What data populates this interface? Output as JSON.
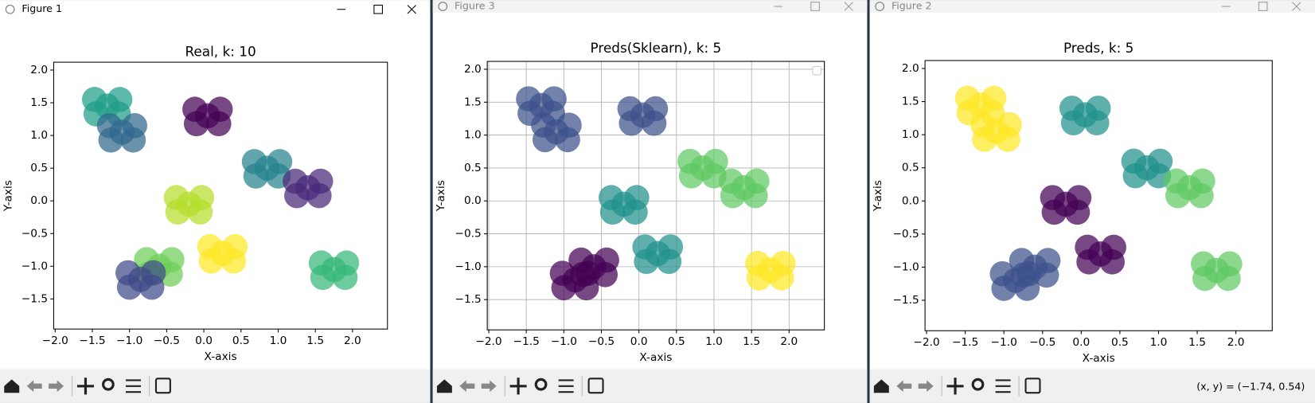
{
  "windows": [
    {
      "title": "Figure 1",
      "chart": {
        "type": "scatter",
        "title": "Real, k: 10",
        "xlabel": "X-axis",
        "ylabel": "Y-axis",
        "grid": false,
        "xlim": [
          -2.02,
          2.47
        ],
        "ylim": [
          -1.96,
          2.12
        ],
        "xticks": [
          {
            "value": -2,
            "label": "−2.0"
          },
          {
            "value": -1.5,
            "label": "−1.5"
          },
          {
            "value": -1,
            "label": "−1.0"
          },
          {
            "value": -0.5,
            "label": "−0.5"
          },
          {
            "value": 0,
            "label": "0.0"
          },
          {
            "value": 0.5,
            "label": "0.5"
          },
          {
            "value": 1,
            "label": "1.0"
          },
          {
            "value": 1.5,
            "label": "1.5"
          },
          {
            "value": 2,
            "label": "2.0"
          }
        ],
        "yticks": [
          {
            "value": -1.5,
            "label": "−1.5"
          },
          {
            "value": -1,
            "label": "−1.0"
          },
          {
            "value": -0.5,
            "label": "−0.5"
          },
          {
            "value": 0,
            "label": "0.0"
          },
          {
            "value": 0.5,
            "label": "0.5"
          },
          {
            "value": 1,
            "label": "1.0"
          },
          {
            "value": 1.5,
            "label": "1.5"
          },
          {
            "value": 2,
            "label": "2.0"
          }
        ],
        "series": [
          {
            "color": "#6ece58",
            "x": [
              -0.6,
              -0.43,
              -0.77,
              -0.45,
              -0.75
            ],
            "y": [
              -1.0,
              -0.9,
              -0.9,
              -1.12,
              -1.12
            ]
          },
          {
            "color": "#3e4989",
            "x": [
              -0.85,
              -0.68,
              -1.02,
              -0.7,
              -1.0
            ],
            "y": [
              -1.2,
              -1.1,
              -1.1,
              -1.32,
              -1.32
            ]
          },
          {
            "color": "#1f9e89",
            "x": [
              -1.3,
              -1.13,
              -1.47,
              -1.15,
              -1.45
            ],
            "y": [
              1.45,
              1.55,
              1.55,
              1.33,
              1.33
            ]
          },
          {
            "color": "#31688e",
            "x": [
              -1.1,
              -0.93,
              -1.27,
              -0.95,
              -1.25
            ],
            "y": [
              1.05,
              1.15,
              1.15,
              0.93,
              0.93
            ]
          },
          {
            "color": "#440154",
            "x": [
              0.05,
              0.22,
              -0.12,
              0.2,
              -0.1
            ],
            "y": [
              1.3,
              1.4,
              1.4,
              1.18,
              1.18
            ]
          },
          {
            "color": "#26828e",
            "x": [
              0.85,
              1.02,
              0.68,
              1.0,
              0.7
            ],
            "y": [
              0.5,
              0.6,
              0.6,
              0.38,
              0.38
            ]
          },
          {
            "color": "#482878",
            "x": [
              1.4,
              1.57,
              1.23,
              1.55,
              1.25
            ],
            "y": [
              0.2,
              0.3,
              0.3,
              0.08,
              0.08
            ]
          },
          {
            "color": "#b5de2b",
            "x": [
              -0.2,
              -0.03,
              -0.37,
              -0.05,
              -0.35
            ],
            "y": [
              -0.05,
              0.05,
              0.05,
              -0.17,
              -0.17
            ]
          },
          {
            "color": "#fde725",
            "x": [
              0.25,
              0.42,
              0.08,
              0.4,
              0.1
            ],
            "y": [
              -0.8,
              -0.7,
              -0.7,
              -0.92,
              -0.92
            ]
          },
          {
            "color": "#35b779",
            "x": [
              1.75,
              1.92,
              1.58,
              1.9,
              1.6
            ],
            "y": [
              -1.05,
              -0.95,
              -0.95,
              -1.17,
              -1.17
            ]
          }
        ]
      }
    },
    {
      "title": "Figure 3",
      "chart": {
        "type": "scatter",
        "title": "Preds(Sklearn), k: 5",
        "xlabel": "X-axis",
        "ylabel": "Y-axis",
        "grid": true,
        "xlim": [
          -2.02,
          2.47
        ],
        "ylim": [
          -1.96,
          2.12
        ],
        "xticks": [
          {
            "value": -2,
            "label": "−2.0"
          },
          {
            "value": -1.5,
            "label": "−1.5"
          },
          {
            "value": -1,
            "label": "−1.0"
          },
          {
            "value": -0.5,
            "label": "−0.5"
          },
          {
            "value": 0,
            "label": "0.0"
          },
          {
            "value": 0.5,
            "label": "0.5"
          },
          {
            "value": 1,
            "label": "1.0"
          },
          {
            "value": 1.5,
            "label": "1.5"
          },
          {
            "value": 2,
            "label": "2.0"
          }
        ],
        "yticks": [
          {
            "value": -1.5,
            "label": "−1.5"
          },
          {
            "value": -1,
            "label": "−1.0"
          },
          {
            "value": -0.5,
            "label": "−0.5"
          },
          {
            "value": 0,
            "label": "0.0"
          },
          {
            "value": 0.5,
            "label": "0.5"
          },
          {
            "value": 1,
            "label": "1.0"
          },
          {
            "value": 1.5,
            "label": "1.5"
          },
          {
            "value": 2,
            "label": "2.0"
          }
        ],
        "series": [
          {
            "color": "#3b528b",
            "x": [
              -1.3,
              -1.13,
              -1.47,
              -1.15,
              -1.45,
              -1.1,
              -0.93,
              -1.27,
              -0.95,
              -1.25,
              0.05,
              0.22,
              -0.12,
              0.2,
              -0.1
            ],
            "y": [
              1.45,
              1.55,
              1.55,
              1.33,
              1.33,
              1.05,
              1.15,
              1.15,
              0.93,
              0.93,
              1.3,
              1.4,
              1.4,
              1.18,
              1.18
            ]
          },
          {
            "color": "#21918c",
            "x": [
              -0.2,
              -0.03,
              -0.37,
              -0.05,
              -0.35,
              0.25,
              0.42,
              0.08,
              0.4,
              0.1
            ],
            "y": [
              -0.05,
              0.05,
              0.05,
              -0.17,
              -0.17,
              -0.8,
              -0.7,
              -0.7,
              -0.92,
              -0.92
            ]
          },
          {
            "color": "#5ec962",
            "x": [
              0.85,
              1.02,
              0.68,
              1.0,
              0.7,
              1.4,
              1.57,
              1.23,
              1.55,
              1.25
            ],
            "y": [
              0.5,
              0.6,
              0.6,
              0.38,
              0.38,
              0.2,
              0.3,
              0.3,
              0.08,
              0.08
            ]
          },
          {
            "color": "#440154",
            "x": [
              -0.85,
              -0.68,
              -1.02,
              -0.7,
              -1.0,
              -0.6,
              -0.43,
              -0.77,
              -0.45,
              -0.75
            ],
            "y": [
              -1.2,
              -1.1,
              -1.1,
              -1.32,
              -1.32,
              -1.0,
              -0.9,
              -0.9,
              -1.12,
              -1.12
            ]
          },
          {
            "color": "#fde725",
            "x": [
              1.75,
              1.92,
              1.58,
              1.9,
              1.6
            ],
            "y": [
              -1.05,
              -0.95,
              -0.95,
              -1.17,
              -1.17
            ]
          }
        ]
      }
    },
    {
      "title": "Figure 2",
      "status": "(x, y) = (−1.74, 0.54)",
      "chart": {
        "type": "scatter",
        "title": "Preds, k: 5",
        "xlabel": "X-axis",
        "ylabel": "Y-axis",
        "grid": false,
        "xlim": [
          -2.02,
          2.47
        ],
        "ylim": [
          -1.96,
          2.12
        ],
        "xticks": [
          {
            "value": -2,
            "label": "−2.0"
          },
          {
            "value": -1.5,
            "label": "−1.5"
          },
          {
            "value": -1,
            "label": "−1.0"
          },
          {
            "value": -0.5,
            "label": "−0.5"
          },
          {
            "value": 0,
            "label": "0.0"
          },
          {
            "value": 0.5,
            "label": "0.5"
          },
          {
            "value": 1,
            "label": "1.0"
          },
          {
            "value": 1.5,
            "label": "1.5"
          },
          {
            "value": 2,
            "label": "2.0"
          }
        ],
        "yticks": [
          {
            "value": -1.5,
            "label": "−1.5"
          },
          {
            "value": -1,
            "label": "−1.0"
          },
          {
            "value": -0.5,
            "label": "−0.5"
          },
          {
            "value": 0,
            "label": "0.0"
          },
          {
            "value": 0.5,
            "label": "0.5"
          },
          {
            "value": 1,
            "label": "1.0"
          },
          {
            "value": 1.5,
            "label": "1.5"
          },
          {
            "value": 2,
            "label": "2.0"
          }
        ],
        "series": [
          {
            "color": "#fde725",
            "x": [
              -1.3,
              -1.13,
              -1.47,
              -1.15,
              -1.45,
              -1.1,
              -0.93,
              -1.27,
              -0.95,
              -1.25
            ],
            "y": [
              1.45,
              1.55,
              1.55,
              1.33,
              1.33,
              1.05,
              1.15,
              1.15,
              0.93,
              0.93
            ]
          },
          {
            "color": "#21918c",
            "x": [
              0.05,
              0.22,
              -0.12,
              0.2,
              -0.1,
              0.85,
              1.02,
              0.68,
              1.0,
              0.7
            ],
            "y": [
              1.3,
              1.4,
              1.4,
              1.18,
              1.18,
              0.5,
              0.6,
              0.6,
              0.38,
              0.38
            ]
          },
          {
            "color": "#5ec962",
            "x": [
              1.4,
              1.57,
              1.23,
              1.55,
              1.25,
              1.75,
              1.92,
              1.58,
              1.9,
              1.6
            ],
            "y": [
              0.2,
              0.3,
              0.3,
              0.08,
              0.08,
              -1.05,
              -0.95,
              -0.95,
              -1.17,
              -1.17
            ]
          },
          {
            "color": "#440154",
            "x": [
              -0.2,
              -0.03,
              -0.37,
              -0.05,
              -0.35,
              0.25,
              0.42,
              0.08,
              0.4,
              0.1
            ],
            "y": [
              -0.05,
              0.05,
              0.05,
              -0.17,
              -0.17,
              -0.8,
              -0.7,
              -0.7,
              -0.92,
              -0.92
            ]
          },
          {
            "color": "#3b528b",
            "x": [
              -0.85,
              -0.68,
              -1.02,
              -0.7,
              -1.0,
              -0.6,
              -0.43,
              -0.77,
              -0.45,
              -0.75
            ],
            "y": [
              -1.2,
              -1.1,
              -1.1,
              -1.32,
              -1.32,
              -1.0,
              -0.9,
              -0.9,
              -1.12,
              -1.12
            ]
          }
        ]
      }
    }
  ]
}
